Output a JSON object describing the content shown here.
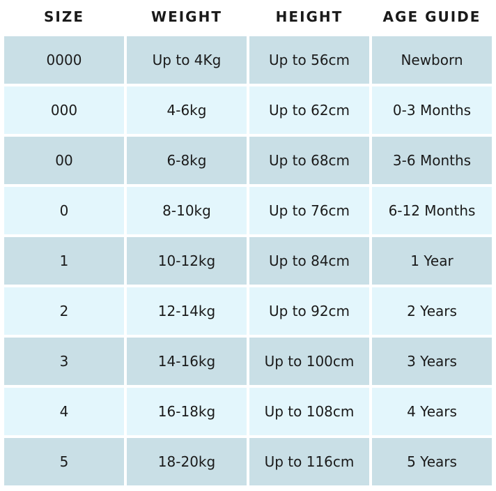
{
  "headers": [
    "SIZE",
    "WEIGHT",
    "HEIGHT",
    "AGE GUIDE"
  ],
  "rows": [
    [
      "0000",
      "Up to 4Kg",
      "Up to 56cm",
      "Newborn"
    ],
    [
      "000",
      "4-6kg",
      "Up to 62cm",
      "0-3 Months"
    ],
    [
      "00",
      "6-8kg",
      "Up to 68cm",
      "3-6 Months"
    ],
    [
      "0",
      "8-10kg",
      "Up to 76cm",
      "6-12 Months"
    ],
    [
      "1",
      "10-12kg",
      "Up to 84cm",
      "1 Year"
    ],
    [
      "2",
      "12-14kg",
      "Up to 92cm",
      "2 Years"
    ],
    [
      "3",
      "14-16kg",
      "Up to 100cm",
      "3 Years"
    ],
    [
      "4",
      "16-18kg",
      "Up to 108cm",
      "4 Years"
    ],
    [
      "5",
      "18-20kg",
      "Up to 116cm",
      "5 Years"
    ]
  ],
  "colors": {
    "row_dark": "#c9dfe6",
    "row_light": "#e3f6fc"
  }
}
